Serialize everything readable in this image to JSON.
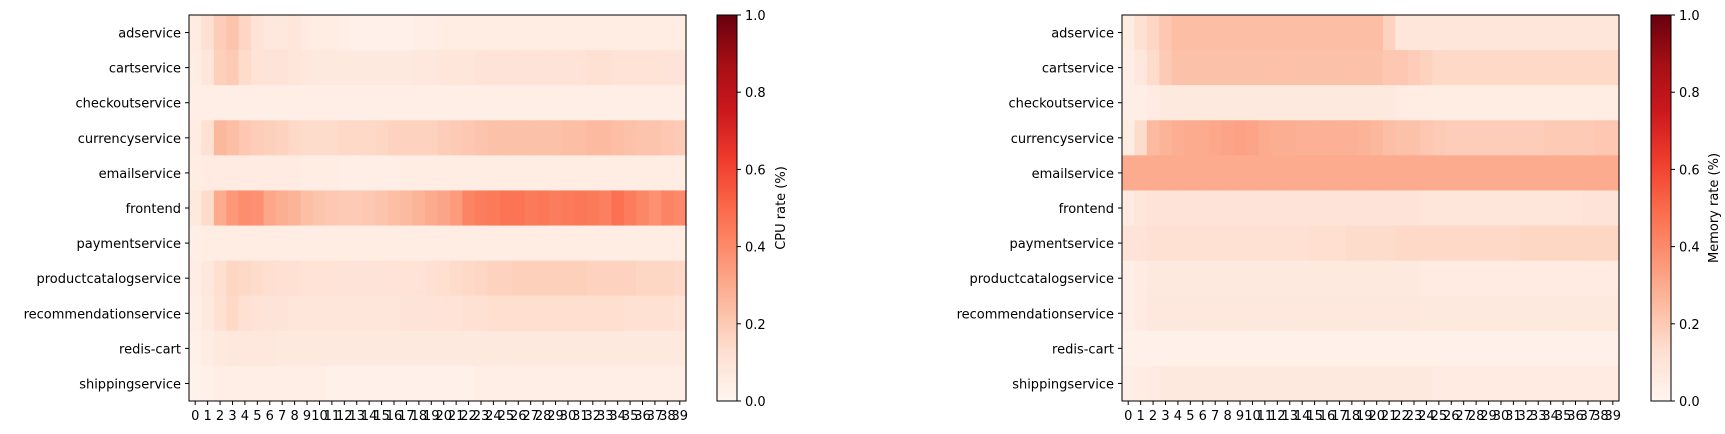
{
  "chart_data": [
    {
      "type": "heatmap",
      "services": [
        "adservice",
        "cartservice",
        "checkoutservice",
        "currencyservice",
        "emailservice",
        "frontend",
        "paymentservice",
        "productcatalogservice",
        "recommendationservice",
        "redis-cart",
        "shippingservice"
      ],
      "x_ticks": [
        0,
        1,
        2,
        3,
        4,
        5,
        6,
        7,
        8,
        9,
        10,
        11,
        12,
        13,
        14,
        15,
        16,
        17,
        18,
        19,
        20,
        21,
        22,
        23,
        24,
        25,
        26,
        27,
        28,
        29,
        30,
        31,
        32,
        33,
        34,
        35,
        36,
        37,
        38,
        39
      ],
      "colorbar": {
        "label": "CPU rate (%)",
        "ticks": [
          "0.0",
          "0.2",
          "0.4",
          "0.6",
          "0.8",
          "1.0"
        ],
        "range": [
          0,
          1
        ],
        "colormap": "Reds"
      },
      "values": [
        [
          0.06,
          0.12,
          0.19,
          0.22,
          0.16,
          0.11,
          0.08,
          0.08,
          0.09,
          0.06,
          0.05,
          0.05,
          0.04,
          0.03,
          0.03,
          0.03,
          0.03,
          0.03,
          0.04,
          0.04,
          0.05,
          0.05,
          0.05,
          0.05,
          0.05,
          0.05,
          0.05,
          0.05,
          0.05,
          0.05,
          0.05,
          0.05,
          0.05,
          0.05,
          0.05,
          0.05,
          0.05,
          0.05,
          0.05,
          0.05
        ],
        [
          0.05,
          0.09,
          0.18,
          0.2,
          0.14,
          0.11,
          0.1,
          0.1,
          0.09,
          0.08,
          0.07,
          0.07,
          0.07,
          0.07,
          0.07,
          0.07,
          0.07,
          0.07,
          0.08,
          0.08,
          0.09,
          0.09,
          0.09,
          0.1,
          0.1,
          0.1,
          0.1,
          0.1,
          0.1,
          0.1,
          0.1,
          0.11,
          0.12,
          0.12,
          0.11,
          0.11,
          0.11,
          0.11,
          0.1,
          0.1
        ],
        [
          0.04,
          0.04,
          0.04,
          0.04,
          0.04,
          0.04,
          0.04,
          0.04,
          0.04,
          0.04,
          0.04,
          0.04,
          0.04,
          0.04,
          0.04,
          0.04,
          0.04,
          0.04,
          0.04,
          0.04,
          0.04,
          0.04,
          0.04,
          0.04,
          0.04,
          0.04,
          0.04,
          0.04,
          0.04,
          0.04,
          0.04,
          0.04,
          0.04,
          0.04,
          0.04,
          0.04,
          0.04,
          0.04,
          0.04,
          0.04
        ],
        [
          0.06,
          0.12,
          0.26,
          0.24,
          0.21,
          0.19,
          0.18,
          0.17,
          0.15,
          0.14,
          0.14,
          0.14,
          0.15,
          0.15,
          0.15,
          0.16,
          0.17,
          0.17,
          0.17,
          0.17,
          0.19,
          0.2,
          0.21,
          0.22,
          0.23,
          0.23,
          0.23,
          0.23,
          0.23,
          0.23,
          0.24,
          0.24,
          0.25,
          0.25,
          0.24,
          0.23,
          0.22,
          0.22,
          0.21,
          0.2
        ],
        [
          0.05,
          0.06,
          0.06,
          0.06,
          0.06,
          0.06,
          0.06,
          0.06,
          0.06,
          0.05,
          0.05,
          0.05,
          0.04,
          0.04,
          0.04,
          0.04,
          0.04,
          0.05,
          0.05,
          0.05,
          0.05,
          0.05,
          0.05,
          0.05,
          0.05,
          0.05,
          0.05,
          0.05,
          0.05,
          0.05,
          0.05,
          0.05,
          0.05,
          0.05,
          0.05,
          0.05,
          0.05,
          0.05,
          0.05,
          0.05
        ],
        [
          0.07,
          0.14,
          0.3,
          0.36,
          0.39,
          0.38,
          0.31,
          0.29,
          0.27,
          0.24,
          0.22,
          0.21,
          0.2,
          0.2,
          0.21,
          0.22,
          0.24,
          0.25,
          0.27,
          0.3,
          0.32,
          0.35,
          0.42,
          0.44,
          0.45,
          0.47,
          0.47,
          0.45,
          0.46,
          0.44,
          0.45,
          0.46,
          0.45,
          0.43,
          0.48,
          0.44,
          0.41,
          0.38,
          0.42,
          0.4
        ],
        [
          0.04,
          0.05,
          0.05,
          0.05,
          0.05,
          0.05,
          0.05,
          0.05,
          0.05,
          0.05,
          0.05,
          0.05,
          0.05,
          0.05,
          0.05,
          0.05,
          0.05,
          0.05,
          0.05,
          0.05,
          0.05,
          0.05,
          0.05,
          0.05,
          0.05,
          0.05,
          0.05,
          0.05,
          0.05,
          0.05,
          0.05,
          0.05,
          0.05,
          0.05,
          0.05,
          0.05,
          0.05,
          0.05,
          0.05,
          0.05
        ],
        [
          0.05,
          0.08,
          0.13,
          0.16,
          0.15,
          0.14,
          0.13,
          0.12,
          0.12,
          0.11,
          0.11,
          0.11,
          0.1,
          0.1,
          0.1,
          0.1,
          0.11,
          0.11,
          0.11,
          0.12,
          0.13,
          0.14,
          0.15,
          0.16,
          0.17,
          0.17,
          0.18,
          0.18,
          0.18,
          0.18,
          0.18,
          0.18,
          0.17,
          0.17,
          0.17,
          0.17,
          0.16,
          0.16,
          0.16,
          0.15
        ],
        [
          0.04,
          0.07,
          0.12,
          0.15,
          0.12,
          0.11,
          0.1,
          0.1,
          0.09,
          0.09,
          0.09,
          0.09,
          0.09,
          0.09,
          0.09,
          0.09,
          0.09,
          0.1,
          0.1,
          0.1,
          0.11,
          0.11,
          0.12,
          0.12,
          0.13,
          0.13,
          0.13,
          0.13,
          0.13,
          0.13,
          0.13,
          0.13,
          0.13,
          0.13,
          0.13,
          0.12,
          0.12,
          0.12,
          0.12,
          0.11
        ],
        [
          0.03,
          0.05,
          0.07,
          0.08,
          0.08,
          0.08,
          0.08,
          0.07,
          0.07,
          0.07,
          0.07,
          0.07,
          0.07,
          0.07,
          0.07,
          0.07,
          0.07,
          0.07,
          0.07,
          0.07,
          0.07,
          0.07,
          0.07,
          0.07,
          0.07,
          0.07,
          0.07,
          0.07,
          0.07,
          0.07,
          0.07,
          0.07,
          0.07,
          0.07,
          0.07,
          0.07,
          0.07,
          0.07,
          0.07,
          0.07
        ],
        [
          0.02,
          0.03,
          0.04,
          0.04,
          0.04,
          0.04,
          0.04,
          0.04,
          0.04,
          0.04,
          0.04,
          0.03,
          0.03,
          0.03,
          0.03,
          0.03,
          0.03,
          0.03,
          0.03,
          0.03,
          0.03,
          0.03,
          0.03,
          0.04,
          0.04,
          0.04,
          0.04,
          0.04,
          0.04,
          0.04,
          0.04,
          0.04,
          0.04,
          0.04,
          0.04,
          0.04,
          0.04,
          0.04,
          0.04,
          0.04
        ]
      ]
    },
    {
      "type": "heatmap",
      "services": [
        "adservice",
        "cartservice",
        "checkoutservice",
        "currencyservice",
        "emailservice",
        "frontend",
        "paymentservice",
        "productcatalogservice",
        "recommendationservice",
        "redis-cart",
        "shippingservice"
      ],
      "x_ticks": [
        0,
        1,
        2,
        3,
        4,
        5,
        6,
        7,
        8,
        9,
        10,
        11,
        12,
        13,
        14,
        15,
        16,
        17,
        18,
        19,
        20,
        21,
        22,
        23,
        24,
        25,
        26,
        27,
        28,
        29,
        30,
        31,
        32,
        33,
        34,
        35,
        36,
        37,
        38,
        39
      ],
      "colorbar": {
        "label": "Memory rate (%)",
        "ticks": [
          "0.0",
          "0.2",
          "0.4",
          "0.6",
          "0.8",
          "1.0"
        ],
        "range": [
          0,
          1
        ],
        "colormap": "Reds"
      },
      "values": [
        [
          0.05,
          0.12,
          0.16,
          0.21,
          0.24,
          0.24,
          0.24,
          0.24,
          0.24,
          0.24,
          0.24,
          0.24,
          0.24,
          0.24,
          0.24,
          0.24,
          0.24,
          0.24,
          0.24,
          0.24,
          0.24,
          0.17,
          0.09,
          0.09,
          0.09,
          0.09,
          0.09,
          0.09,
          0.09,
          0.09,
          0.09,
          0.09,
          0.09,
          0.09,
          0.09,
          0.09,
          0.09,
          0.09,
          0.09,
          0.09
        ],
        [
          0.04,
          0.08,
          0.14,
          0.2,
          0.23,
          0.23,
          0.23,
          0.23,
          0.23,
          0.23,
          0.23,
          0.23,
          0.23,
          0.23,
          0.23,
          0.23,
          0.23,
          0.23,
          0.23,
          0.23,
          0.23,
          0.21,
          0.21,
          0.19,
          0.17,
          0.15,
          0.15,
          0.15,
          0.15,
          0.15,
          0.15,
          0.15,
          0.15,
          0.15,
          0.15,
          0.15,
          0.15,
          0.15,
          0.15,
          0.15
        ],
        [
          0.04,
          0.04,
          0.06,
          0.07,
          0.07,
          0.07,
          0.07,
          0.07,
          0.07,
          0.07,
          0.07,
          0.07,
          0.07,
          0.07,
          0.07,
          0.07,
          0.07,
          0.07,
          0.07,
          0.07,
          0.07,
          0.07,
          0.06,
          0.05,
          0.05,
          0.05,
          0.05,
          0.05,
          0.05,
          0.05,
          0.05,
          0.05,
          0.05,
          0.05,
          0.05,
          0.05,
          0.05,
          0.05,
          0.05,
          0.05
        ],
        [
          0.05,
          0.14,
          0.25,
          0.27,
          0.29,
          0.3,
          0.3,
          0.31,
          0.32,
          0.33,
          0.32,
          0.3,
          0.29,
          0.29,
          0.28,
          0.28,
          0.28,
          0.28,
          0.28,
          0.27,
          0.26,
          0.24,
          0.23,
          0.23,
          0.21,
          0.2,
          0.19,
          0.19,
          0.19,
          0.19,
          0.19,
          0.19,
          0.19,
          0.19,
          0.2,
          0.2,
          0.2,
          0.2,
          0.21,
          0.21
        ],
        [
          0.3,
          0.3,
          0.3,
          0.3,
          0.3,
          0.3,
          0.3,
          0.3,
          0.3,
          0.3,
          0.3,
          0.3,
          0.3,
          0.3,
          0.3,
          0.3,
          0.3,
          0.3,
          0.3,
          0.3,
          0.3,
          0.3,
          0.3,
          0.3,
          0.3,
          0.3,
          0.3,
          0.3,
          0.3,
          0.3,
          0.3,
          0.3,
          0.3,
          0.3,
          0.3,
          0.3,
          0.3,
          0.3,
          0.3,
          0.3
        ],
        [
          0.06,
          0.09,
          0.1,
          0.1,
          0.1,
          0.1,
          0.1,
          0.1,
          0.1,
          0.1,
          0.1,
          0.1,
          0.1,
          0.1,
          0.1,
          0.1,
          0.1,
          0.1,
          0.1,
          0.1,
          0.1,
          0.1,
          0.1,
          0.1,
          0.09,
          0.09,
          0.09,
          0.09,
          0.09,
          0.09,
          0.09,
          0.09,
          0.09,
          0.09,
          0.09,
          0.09,
          0.09,
          0.1,
          0.1,
          0.1
        ],
        [
          0.1,
          0.11,
          0.12,
          0.12,
          0.12,
          0.12,
          0.12,
          0.12,
          0.12,
          0.12,
          0.12,
          0.12,
          0.12,
          0.12,
          0.12,
          0.13,
          0.13,
          0.13,
          0.14,
          0.14,
          0.14,
          0.14,
          0.15,
          0.15,
          0.15,
          0.15,
          0.15,
          0.15,
          0.15,
          0.15,
          0.15,
          0.15,
          0.16,
          0.16,
          0.16,
          0.16,
          0.16,
          0.16,
          0.16,
          0.16
        ],
        [
          0.04,
          0.06,
          0.07,
          0.07,
          0.07,
          0.07,
          0.07,
          0.07,
          0.07,
          0.07,
          0.07,
          0.07,
          0.07,
          0.07,
          0.07,
          0.07,
          0.07,
          0.07,
          0.07,
          0.07,
          0.07,
          0.07,
          0.07,
          0.07,
          0.06,
          0.06,
          0.06,
          0.06,
          0.06,
          0.06,
          0.06,
          0.06,
          0.06,
          0.06,
          0.06,
          0.06,
          0.06,
          0.06,
          0.06,
          0.06
        ],
        [
          0.04,
          0.06,
          0.08,
          0.08,
          0.08,
          0.08,
          0.08,
          0.08,
          0.08,
          0.08,
          0.08,
          0.08,
          0.08,
          0.08,
          0.08,
          0.08,
          0.08,
          0.08,
          0.08,
          0.08,
          0.08,
          0.08,
          0.08,
          0.08,
          0.07,
          0.07,
          0.07,
          0.07,
          0.07,
          0.07,
          0.07,
          0.07,
          0.07,
          0.07,
          0.07,
          0.07,
          0.07,
          0.07,
          0.07,
          0.07
        ],
        [
          0.03,
          0.03,
          0.03,
          0.03,
          0.03,
          0.03,
          0.03,
          0.03,
          0.03,
          0.03,
          0.03,
          0.03,
          0.03,
          0.03,
          0.03,
          0.03,
          0.03,
          0.03,
          0.03,
          0.03,
          0.03,
          0.03,
          0.03,
          0.03,
          0.03,
          0.03,
          0.03,
          0.03,
          0.03,
          0.03,
          0.03,
          0.03,
          0.03,
          0.03,
          0.03,
          0.03,
          0.03,
          0.03,
          0.03,
          0.03
        ],
        [
          0.04,
          0.05,
          0.06,
          0.07,
          0.07,
          0.07,
          0.07,
          0.07,
          0.07,
          0.07,
          0.07,
          0.07,
          0.07,
          0.07,
          0.07,
          0.07,
          0.07,
          0.07,
          0.07,
          0.07,
          0.07,
          0.07,
          0.07,
          0.07,
          0.07,
          0.06,
          0.06,
          0.06,
          0.06,
          0.06,
          0.06,
          0.06,
          0.06,
          0.06,
          0.06,
          0.06,
          0.06,
          0.06,
          0.06,
          0.06
        ]
      ]
    }
  ]
}
